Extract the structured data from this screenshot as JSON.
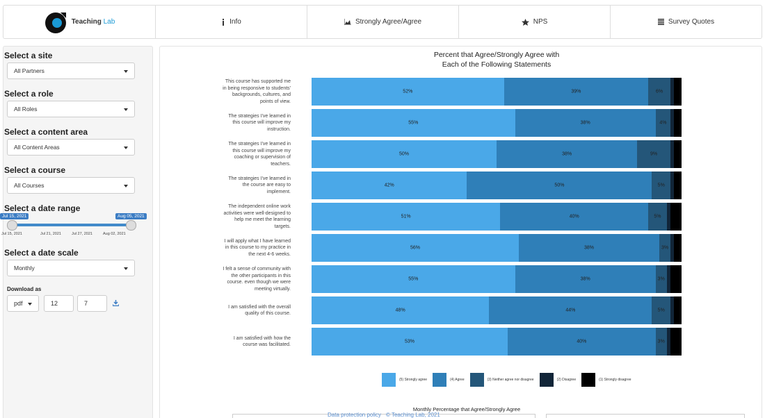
{
  "nav": {
    "brand": [
      "Teaching",
      "Lab"
    ],
    "tabs": [
      "Info",
      "Strongly Agree/Agree",
      "NPS",
      "Survey Quotes"
    ]
  },
  "sidebar": {
    "filters": [
      {
        "label": "Select a site",
        "value": "All Partners"
      },
      {
        "label": "Select a role",
        "value": "All Roles"
      },
      {
        "label": "Select a content area",
        "value": "All Content Areas"
      },
      {
        "label": "Select a course",
        "value": "All Courses"
      }
    ],
    "date_range": {
      "label": "Select a date range",
      "from": "Jul 15, 2021",
      "to": "Aug 05, 2021",
      "ticks": [
        "Jul 15, 2021",
        "Jul 21, 2021",
        "Jul 27, 2021",
        "Aug 02, 2021"
      ]
    },
    "date_scale": {
      "label": "Select a date scale",
      "value": "Monthly"
    },
    "download": {
      "label": "Download as",
      "format": "pdf",
      "width": "12",
      "height": "7"
    }
  },
  "chart_data": {
    "type": "bar",
    "orientation": "horizontal",
    "stacked": true,
    "title": [
      "Percent that Agree/Strongly Agree with",
      "Each of the Following Statements"
    ],
    "categories": [
      "This course has supported me in being responsive to students' backgrounds, cultures, and points of view.",
      "The strategies I've learned in this course will improve my instruction.",
      "The strategies I've learned in this course will improve my coaching or supervision of teachers.",
      "The strategies I've learned in the course are easy to implement.",
      "The independent online work activities were well-designed to help me meet the learning targets.",
      "I will apply what I have learned in this course to my practice in the next 4-6 weeks.",
      "I felt a sense of community with the other participants in this course. even though we were meeting virtually.",
      "I am satisfied with the overall quality of this course.",
      "I am satisfied with how the course was facilitated."
    ],
    "xlim": [
      0,
      100
    ],
    "series": [
      {
        "name": "(5) Strongly agree",
        "color": "#4aa8e8",
        "values": [
          52,
          55,
          50,
          42,
          51,
          56,
          55,
          48,
          53
        ],
        "value_labels": [
          "52%",
          "55%",
          "50%",
          "42%",
          "51%",
          "56%",
          "55%",
          "48%",
          "53%"
        ]
      },
      {
        "name": "(4) Agree",
        "color": "#2f7fb8",
        "values": [
          39,
          38,
          38,
          50,
          40,
          38,
          38,
          44,
          40
        ],
        "value_labels": [
          "39%",
          "38%",
          "38%",
          "50%",
          "40%",
          "38%",
          "38%",
          "44%",
          "40%"
        ]
      },
      {
        "name": "(3) Neither agree nor disagree",
        "color": "#245679",
        "values": [
          6,
          4,
          9,
          5,
          5,
          3,
          3,
          5,
          3
        ],
        "value_labels": [
          "6%",
          "4%",
          "9%",
          "5%",
          "5%",
          "3%",
          "3%",
          "5%",
          "3%"
        ]
      },
      {
        "name": "(2) Disagree",
        "color": "#112538",
        "values": [
          1,
          1,
          1,
          1,
          1,
          1,
          1,
          1,
          1
        ]
      },
      {
        "name": "(1) Strongly disagree",
        "color": "#000000",
        "values": [
          2,
          2,
          2,
          2,
          3,
          2,
          3,
          2,
          3
        ]
      }
    ]
  },
  "monthly_chart": {
    "title": "Monthly Percentage that Agree/Strongly Agree"
  },
  "footer": [
    "Data protection policy",
    "© Teaching Lab, 2021"
  ]
}
